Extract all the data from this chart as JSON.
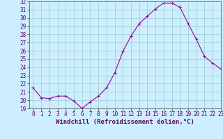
{
  "x": [
    0,
    1,
    2,
    3,
    4,
    5,
    6,
    7,
    8,
    9,
    10,
    11,
    12,
    13,
    14,
    15,
    16,
    17,
    18,
    19,
    20,
    21,
    22,
    23
  ],
  "y": [
    21.5,
    20.3,
    20.2,
    20.5,
    20.5,
    19.9,
    19.0,
    19.8,
    20.5,
    21.5,
    23.3,
    25.9,
    27.8,
    29.3,
    30.2,
    31.1,
    31.8,
    31.8,
    31.3,
    29.3,
    27.4,
    25.3,
    24.5,
    23.8
  ],
  "line_color": "#990099",
  "marker": "+",
  "marker_size": 3,
  "bg_color": "#cceeff",
  "grid_color": "#99cccc",
  "xlabel": "Windchill (Refroidissement éolien,°C)",
  "ylabel": "",
  "ylim": [
    19,
    32
  ],
  "xlim": [
    -0.5,
    23
  ],
  "yticks": [
    19,
    20,
    21,
    22,
    23,
    24,
    25,
    26,
    27,
    28,
    29,
    30,
    31,
    32
  ],
  "xticks": [
    0,
    1,
    2,
    3,
    4,
    5,
    6,
    7,
    8,
    9,
    10,
    11,
    12,
    13,
    14,
    15,
    16,
    17,
    18,
    19,
    20,
    21,
    22,
    23
  ],
  "tick_label_fontsize": 5.5,
  "xlabel_fontsize": 6.5,
  "line_width": 0.8,
  "axis_color": "#660066",
  "tick_color": "#660066",
  "spine_color": "#666666"
}
